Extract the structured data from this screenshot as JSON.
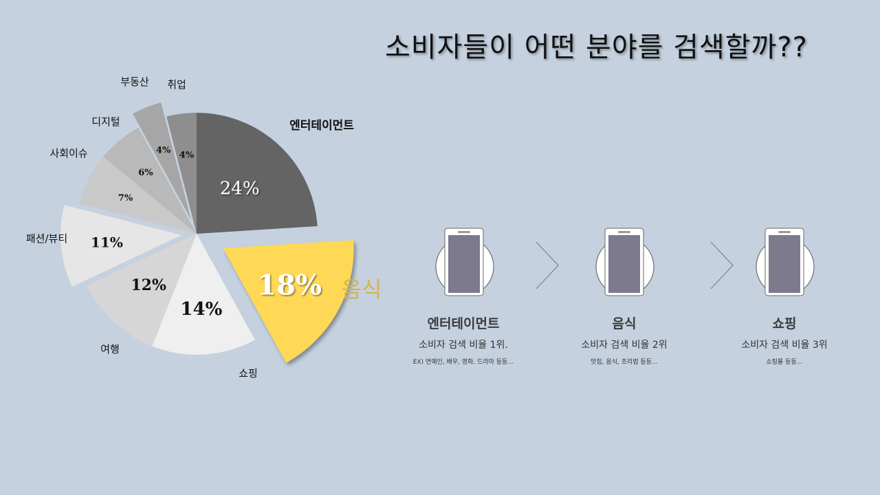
{
  "slide": {
    "title": "소비자들이 어떤 분야를 검색할까??"
  },
  "colors": {
    "background": "#c5d1df",
    "highlight": "#ffd955",
    "highlight_label": "#d6b44a",
    "phone_screen": "#7c7a8c"
  },
  "chart_data": {
    "type": "pie",
    "title": "",
    "start": "12 o'clock, clockwise",
    "slices": [
      {
        "label": "엔터테이먼트",
        "value": 24,
        "value_label": "24%",
        "color": "#646464",
        "exploded": false
      },
      {
        "label": "음식",
        "value": 18,
        "value_label": "18%",
        "color": "#ffd955",
        "exploded": true,
        "highlighted": true
      },
      {
        "label": "쇼핑",
        "value": 14,
        "value_label": "14%",
        "color": "#efefef",
        "exploded": false
      },
      {
        "label": "여행",
        "value": 12,
        "value_label": "12%",
        "color": "#d6d6d6",
        "exploded": false
      },
      {
        "label": "패션/뷰티",
        "value": 11,
        "value_label": "11%",
        "color": "#e6e6e6",
        "exploded": true
      },
      {
        "label": "사회이슈",
        "value": 7,
        "value_label": "7%",
        "color": "#c9c9c9",
        "exploded": false
      },
      {
        "label": "디지털",
        "value": 6,
        "value_label": "6%",
        "color": "#b9b9b9",
        "exploded": false
      },
      {
        "label": "부동산",
        "value": 4,
        "value_label": "4%",
        "color": "#a6a6a6",
        "exploded": true
      },
      {
        "label": "취업",
        "value": 4,
        "value_label": "4%",
        "color": "#8e8e8e",
        "exploded": false
      }
    ]
  },
  "ranking": [
    {
      "name": "엔터테이먼트",
      "description": "소비자 검색 비율 1위.",
      "example": "EX)  연예인, 배우, 영화, 드라마 등등…",
      "icon": "smartphone-icon"
    },
    {
      "name": "음식",
      "description": "소비자 검색 비율 2위",
      "example": "맛집, 음식, 조리법 등등…",
      "icon": "smartphone-icon"
    },
    {
      "name": "쇼핑",
      "description": "소비자 검색 비율 3위",
      "example": "쇼핑몰 등등…",
      "icon": "smartphone-icon"
    }
  ],
  "separator_icon": "chevron-right-icon"
}
